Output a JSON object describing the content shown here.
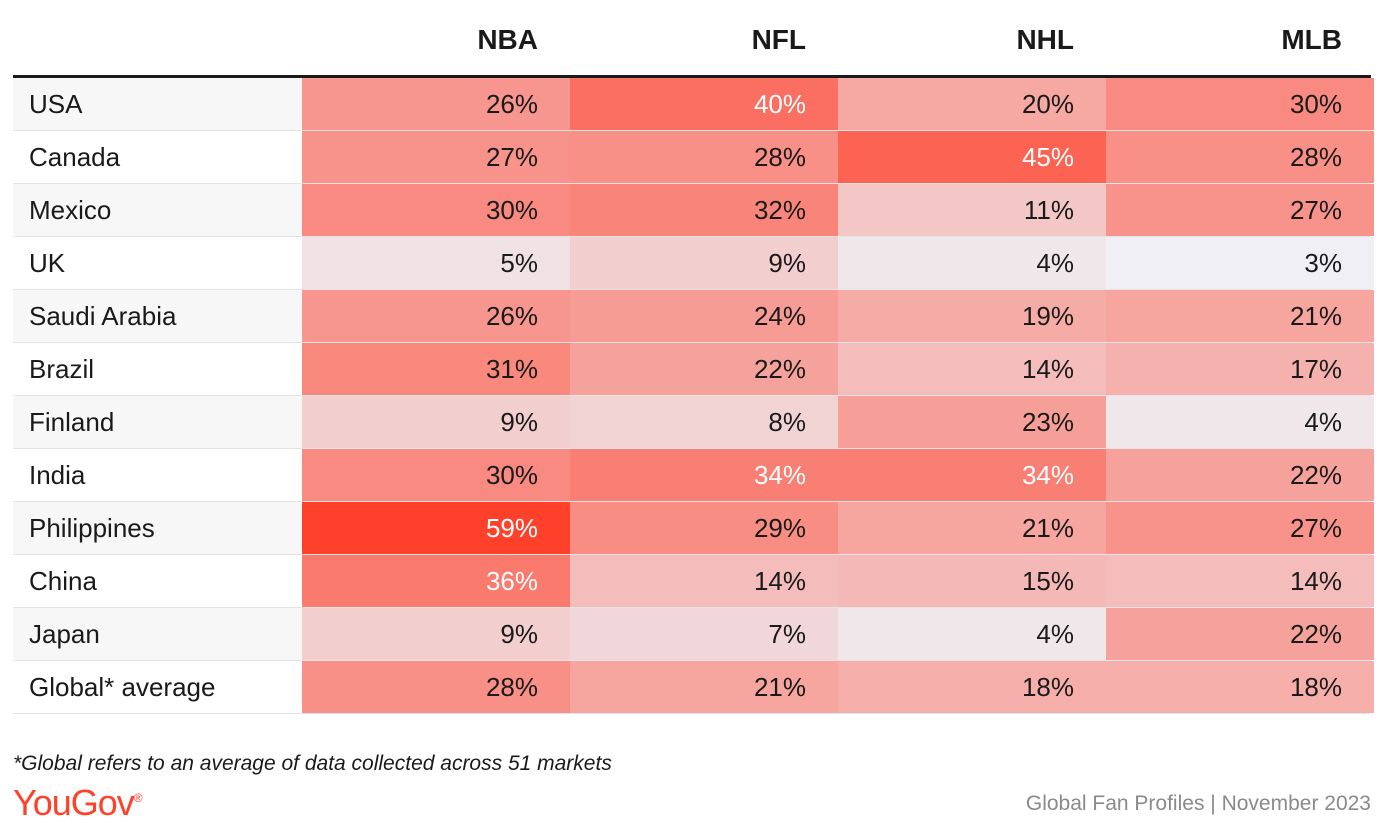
{
  "chart_data": {
    "type": "heatmap",
    "columns": [
      "NBA",
      "NFL",
      "NHL",
      "MLB"
    ],
    "rows": [
      {
        "label": "USA",
        "values": [
          26,
          40,
          20,
          30
        ]
      },
      {
        "label": "Canada",
        "values": [
          27,
          28,
          45,
          28
        ]
      },
      {
        "label": "Mexico",
        "values": [
          30,
          32,
          11,
          27
        ]
      },
      {
        "label": "UK",
        "values": [
          5,
          9,
          4,
          3
        ]
      },
      {
        "label": "Saudi Arabia",
        "values": [
          26,
          24,
          19,
          21
        ]
      },
      {
        "label": "Brazil",
        "values": [
          31,
          22,
          14,
          17
        ]
      },
      {
        "label": "Finland",
        "values": [
          9,
          8,
          23,
          4
        ]
      },
      {
        "label": "India",
        "values": [
          30,
          34,
          34,
          22
        ]
      },
      {
        "label": "Philippines",
        "values": [
          59,
          29,
          21,
          27
        ]
      },
      {
        "label": "China",
        "values": [
          36,
          14,
          15,
          14
        ]
      },
      {
        "label": "Japan",
        "values": [
          9,
          7,
          4,
          22
        ]
      },
      {
        "label": "Global* average",
        "values": [
          28,
          21,
          18,
          18
        ]
      }
    ],
    "value_suffix": "%",
    "color_low": "#efeff5",
    "color_high": "#ff412c"
  },
  "footnote": "*Global refers to an average of data collected across 51 markets",
  "logo": {
    "text": "YouGov",
    "mark": "®"
  },
  "source": "Global Fan Profiles | November 2023"
}
